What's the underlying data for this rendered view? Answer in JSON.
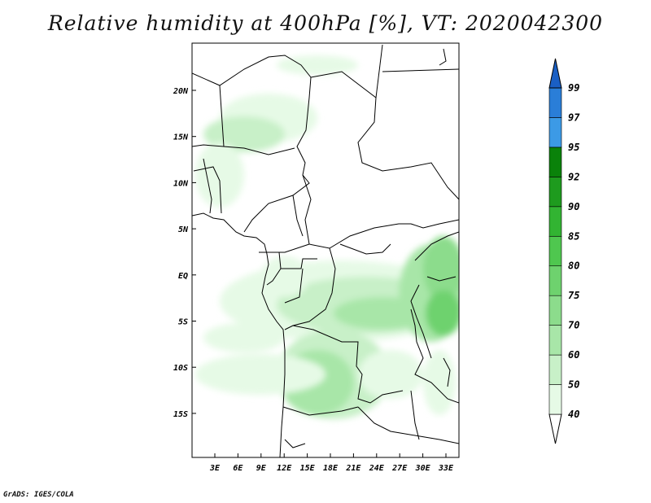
{
  "title": "Relative humidity at 400hPa [%], VT: 2020042300",
  "credit": "GrADS: IGES/COLA",
  "map": {
    "region": "Central Africa",
    "lat_ticks": [
      "20N",
      "15N",
      "10N",
      "5N",
      "EQ",
      "5S",
      "10S",
      "15S"
    ],
    "lon_ticks": [
      "3E",
      "6E",
      "9E",
      "12E",
      "15E",
      "18E",
      "21E",
      "24E",
      "27E",
      "30E",
      "33E"
    ]
  },
  "colorbar": {
    "levels": [
      "40",
      "50",
      "60",
      "70",
      "75",
      "80",
      "85",
      "90",
      "92",
      "95",
      "97",
      "99"
    ],
    "colors": [
      "#ffffff",
      "#e6fae6",
      "#c8f0c8",
      "#a8e6a8",
      "#8cdc8c",
      "#6ed26e",
      "#4fc74f",
      "#32b432",
      "#1e9b1e",
      "#0a820a",
      "#3c9ae6",
      "#2a7ed8",
      "#1a5fc4"
    ]
  }
}
